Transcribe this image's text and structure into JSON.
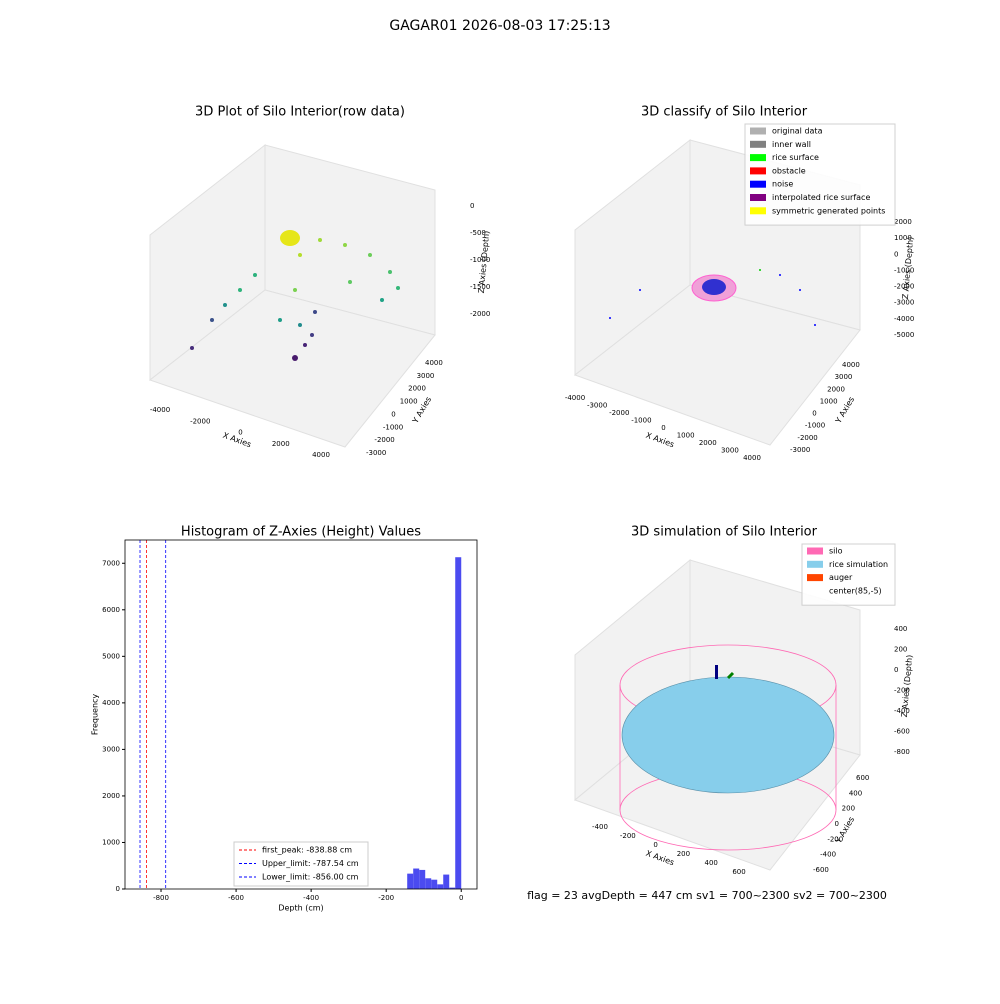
{
  "title": "GAGAR01 2026-08-03 17:25:13",
  "footer": "flag = 23  avgDepth = 447 cm  sv1 = 700~2300  sv2 = 700~2300",
  "chart_data": [
    {
      "type": "scatter3d",
      "title": "3D Plot of Silo Interior(row data)",
      "xlabel": "X Axies",
      "ylabel": "Y Axies",
      "zlabel": "Z Axies (Depth)",
      "xticks": [
        -4000,
        -2000,
        0,
        2000,
        4000
      ],
      "yticks": [
        -3000,
        -2000,
        -1000,
        0,
        1000,
        2000,
        3000,
        4000
      ],
      "zticks": [
        0,
        -500,
        -1000,
        -1500,
        -2000
      ]
    },
    {
      "type": "scatter3d",
      "title": "3D classify of Silo Interior",
      "xlabel": "X Axies",
      "ylabel": "Y Axies",
      "zlabel": "Z Axies (Depth)",
      "xticks": [
        -4000,
        -3000,
        -2000,
        -1000,
        0,
        1000,
        2000,
        3000,
        4000
      ],
      "yticks": [
        -3000,
        -2000,
        -1000,
        0,
        1000,
        2000,
        3000,
        4000
      ],
      "zticks": [
        2000,
        1000,
        0,
        -1000,
        -2000,
        -3000,
        -4000,
        -5000
      ],
      "legend": [
        {
          "name": "original data",
          "color": "#b0b0b0"
        },
        {
          "name": "inner wall",
          "color": "#808080"
        },
        {
          "name": "rice surface",
          "color": "#00ff00"
        },
        {
          "name": "obstacle",
          "color": "#ff0000"
        },
        {
          "name": "noise",
          "color": "#0000ff"
        },
        {
          "name": "interpolated rice surface",
          "color": "#800080"
        },
        {
          "name": "symmetric generated points",
          "color": "#ffff00"
        }
      ]
    },
    {
      "type": "histogram",
      "title": "Histogram of Z-Axies (Height) Values",
      "xlabel": "Depth (cm)",
      "ylabel": "Frequency",
      "color": "#4b4bf0",
      "bins": [
        -144,
        -128,
        -112,
        -96,
        -80,
        -64,
        -48,
        -32,
        -16,
        0
      ],
      "counts": [
        330,
        440,
        410,
        230,
        200,
        100,
        310,
        30,
        7130
      ],
      "xlim": [
        -896,
        42
      ],
      "ylim": [
        0,
        7500
      ],
      "xticks": [
        -800,
        -600,
        -400,
        -200,
        0
      ],
      "yticks": [
        0,
        1000,
        2000,
        3000,
        4000,
        5000,
        6000,
        7000
      ],
      "vlines": [
        {
          "name": "first_peak: -838.88 cm",
          "value": -838.88,
          "color": "#ff0000"
        },
        {
          "name": "Upper_limit: -787.54 cm",
          "value": -787.54,
          "color": "#0000ff"
        },
        {
          "name": "Lower_limit: -856.00 cm",
          "value": -856.0,
          "color": "#0000ff"
        }
      ]
    },
    {
      "type": "surface3d",
      "title": "3D simulation of Silo Interior",
      "xlabel": "X Axies",
      "ylabel": "Y Axies",
      "zlabel": "Z Axies (Depth)",
      "xticks": [
        -400,
        -200,
        0,
        200,
        400,
        600
      ],
      "yticks": [
        -600,
        -400,
        -200,
        0,
        200,
        400,
        600
      ],
      "zticks": [
        400,
        200,
        0,
        -200,
        -400,
        -600,
        -800
      ],
      "legend": [
        {
          "name": "silo",
          "color": "#ff69b4"
        },
        {
          "name": "rice simulation",
          "color": "#87ceeb"
        },
        {
          "name": "auger",
          "color": "#ff4500"
        },
        {
          "name": "center(85,-5)",
          "color": "#ffffff"
        }
      ]
    }
  ]
}
